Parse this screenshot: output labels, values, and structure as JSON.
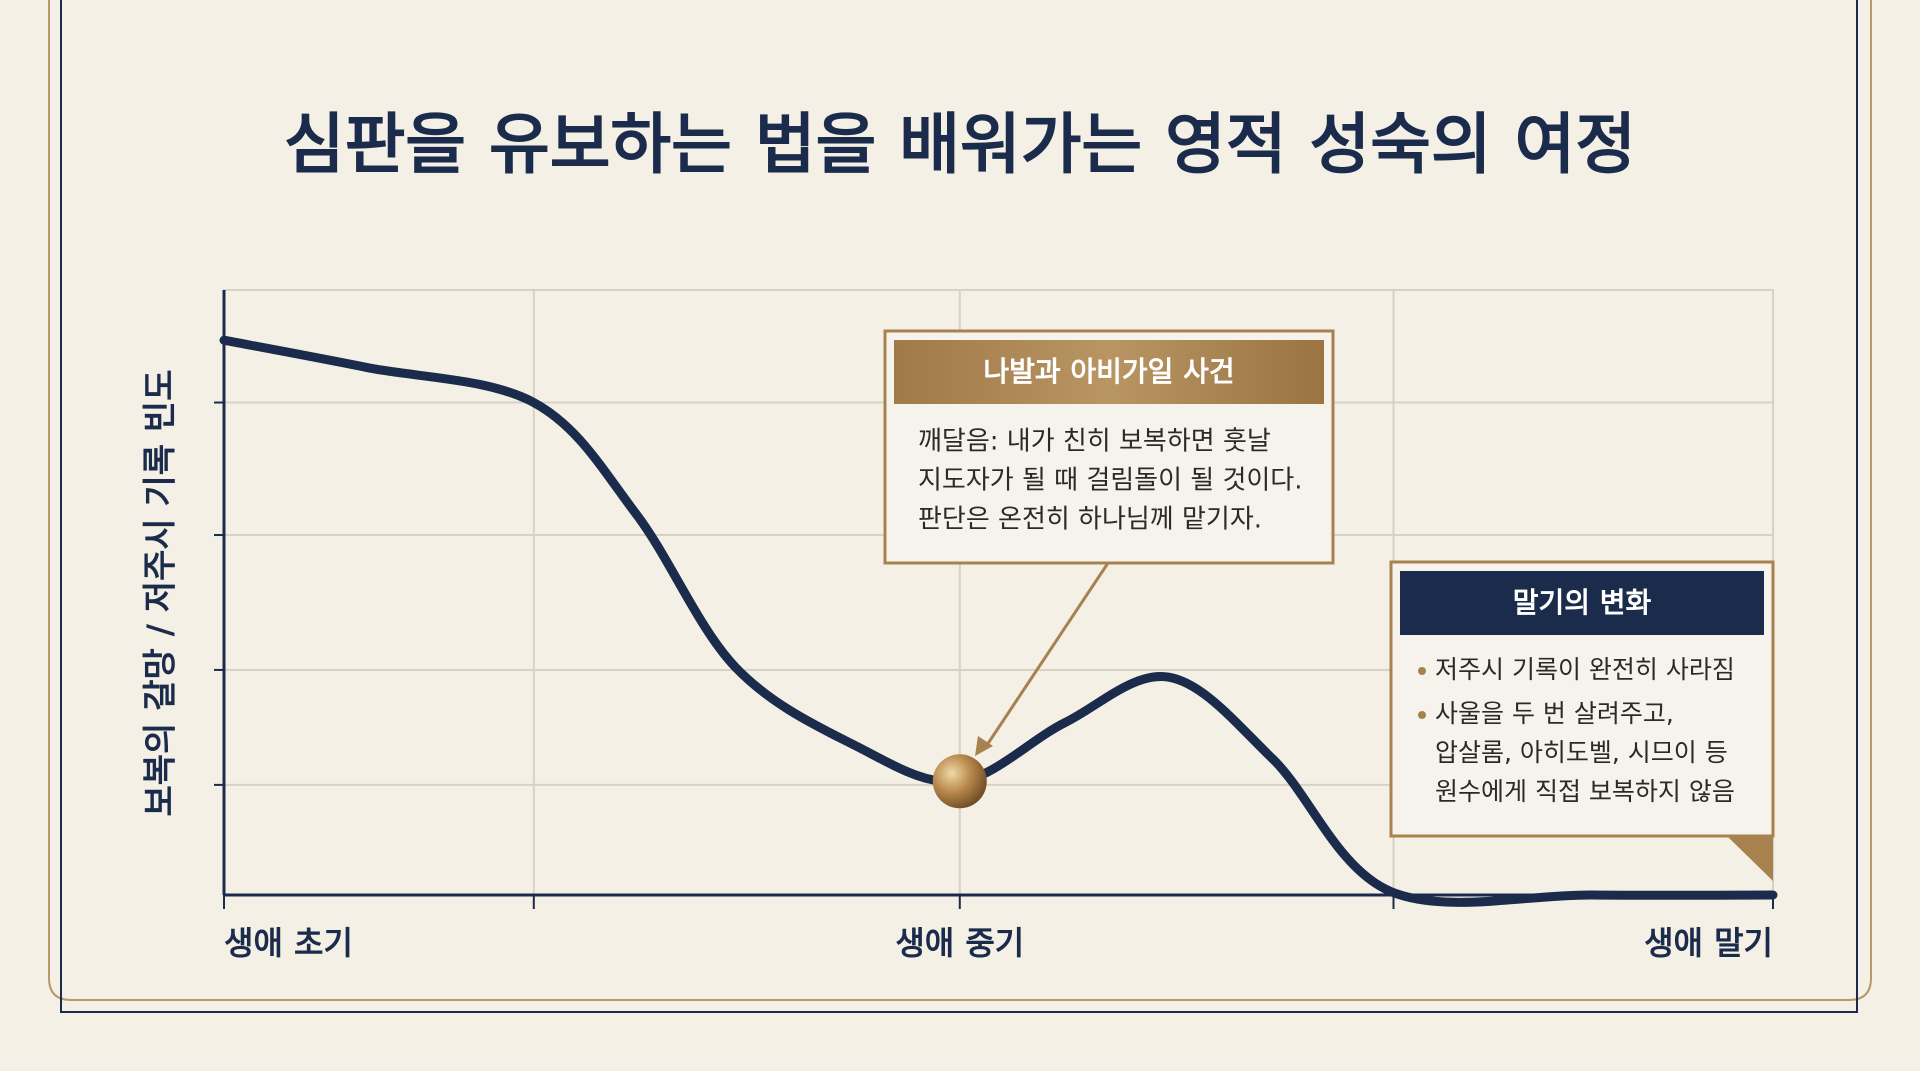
{
  "chart_data": {
    "type": "line",
    "title": "심판을 유보하는 법을 배워가는 영적 성숙의 여정",
    "y_label": "보복의 갈망 / 저주시 기록 빈도",
    "xlim": [
      0,
      100
    ],
    "ylim": [
      0,
      100
    ],
    "xticks": [
      {
        "value": 0,
        "label": "생애 초기"
      },
      {
        "value": 20,
        "label": null
      },
      {
        "value": 47.5,
        "label": "생애 중기"
      },
      {
        "value": 75.5,
        "label": null
      },
      {
        "value": 100,
        "label": "생애 말기"
      }
    ],
    "yticks": [
      {
        "value": 18.2,
        "label": null
      },
      {
        "value": 37.2,
        "label": null
      },
      {
        "value": 59.5,
        "label": null
      },
      {
        "value": 81.4,
        "label": null
      }
    ],
    "grid": true,
    "series": [
      {
        "color": "#1b2b4b",
        "x": [
          0,
          9.2,
          20,
          26.6,
          33,
          40.9,
          47.5,
          54.3,
          61,
          67.7,
          75.3,
          88.3,
          100
        ],
        "values": [
          91.7,
          87.2,
          81.4,
          63,
          37.7,
          24.5,
          18.8,
          28.5,
          36,
          22.5,
          0.6,
          0,
          0
        ]
      }
    ],
    "highlight_index": 6,
    "annotations": [
      {
        "title": "나발과 아비가일 사건",
        "lines": [
          "깨달음: 내가 친히 보복하면 훗날",
          "지도자가 될 때 걸림돌이 될 것이다.",
          "판단은 온전히 하나님께 맡기자."
        ]
      },
      {
        "title": "말기의 변화",
        "bullets": [
          [
            "저주시 기록이 완전히 사라짐"
          ],
          [
            "사울을 두 번 살려주고,",
            "압살롬, 아히도벨, 시므이 등",
            "원수에게 직접 보복하지 않음"
          ]
        ]
      }
    ]
  }
}
